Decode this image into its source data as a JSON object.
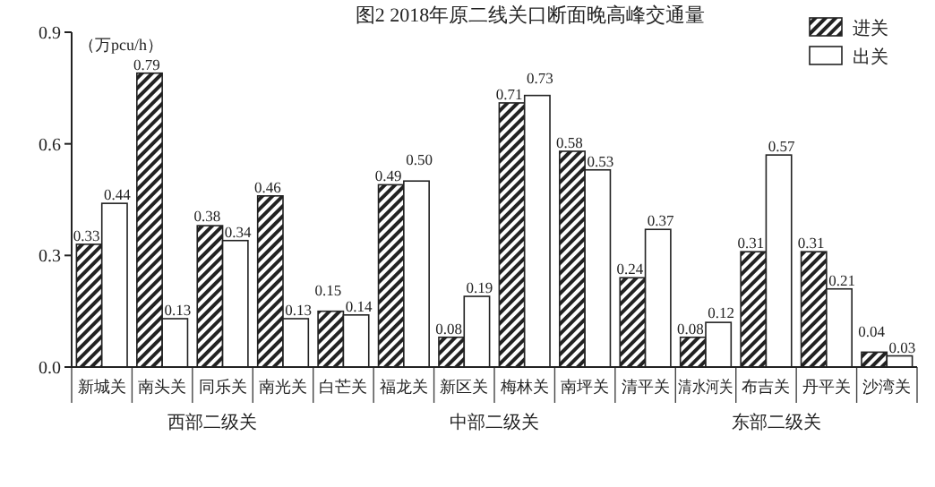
{
  "chart_data": {
    "type": "bar",
    "title": "图2 2018年原二线关口断面晚高峰交通量",
    "ylabel": "（万pcu/h）",
    "categories": [
      "新城关",
      "南头关",
      "同乐关",
      "南光关",
      "白芒关",
      "福龙关",
      "新区关",
      "梅林关",
      "南坪关",
      "清平关",
      "清水河关",
      "布吉关",
      "丹平关",
      "沙湾关"
    ],
    "series": [
      {
        "name": "进关",
        "color": "#222222",
        "values": [
          0.33,
          0.79,
          0.38,
          0.46,
          0.15,
          0.49,
          0.08,
          0.71,
          0.58,
          0.24,
          0.08,
          0.31,
          0.31,
          0.04
        ]
      },
      {
        "name": "出关",
        "color": "#ffffff",
        "values": [
          0.44,
          0.13,
          0.34,
          0.13,
          0.14,
          0.5,
          0.19,
          0.73,
          0.53,
          0.37,
          0.12,
          0.57,
          0.21,
          0.03
        ],
        "value_labels": [
          "0.44",
          "0.13",
          "0.34",
          "0.13",
          "0.14",
          "0.50",
          "0.19",
          "0.73",
          "0.53",
          "0.37",
          "0.12",
          "0.57",
          "0.21",
          "0.03"
        ]
      }
    ],
    "ylim": [
      0,
      0.9
    ],
    "yticks": [
      {
        "value": 0,
        "label": "0.0"
      },
      0.3,
      0.6,
      0.9
    ],
    "data_labels": true,
    "legend": "top right",
    "grid": false,
    "annotations": [
      "西部二级关",
      "中部二级关",
      "东部二级关"
    ]
  }
}
